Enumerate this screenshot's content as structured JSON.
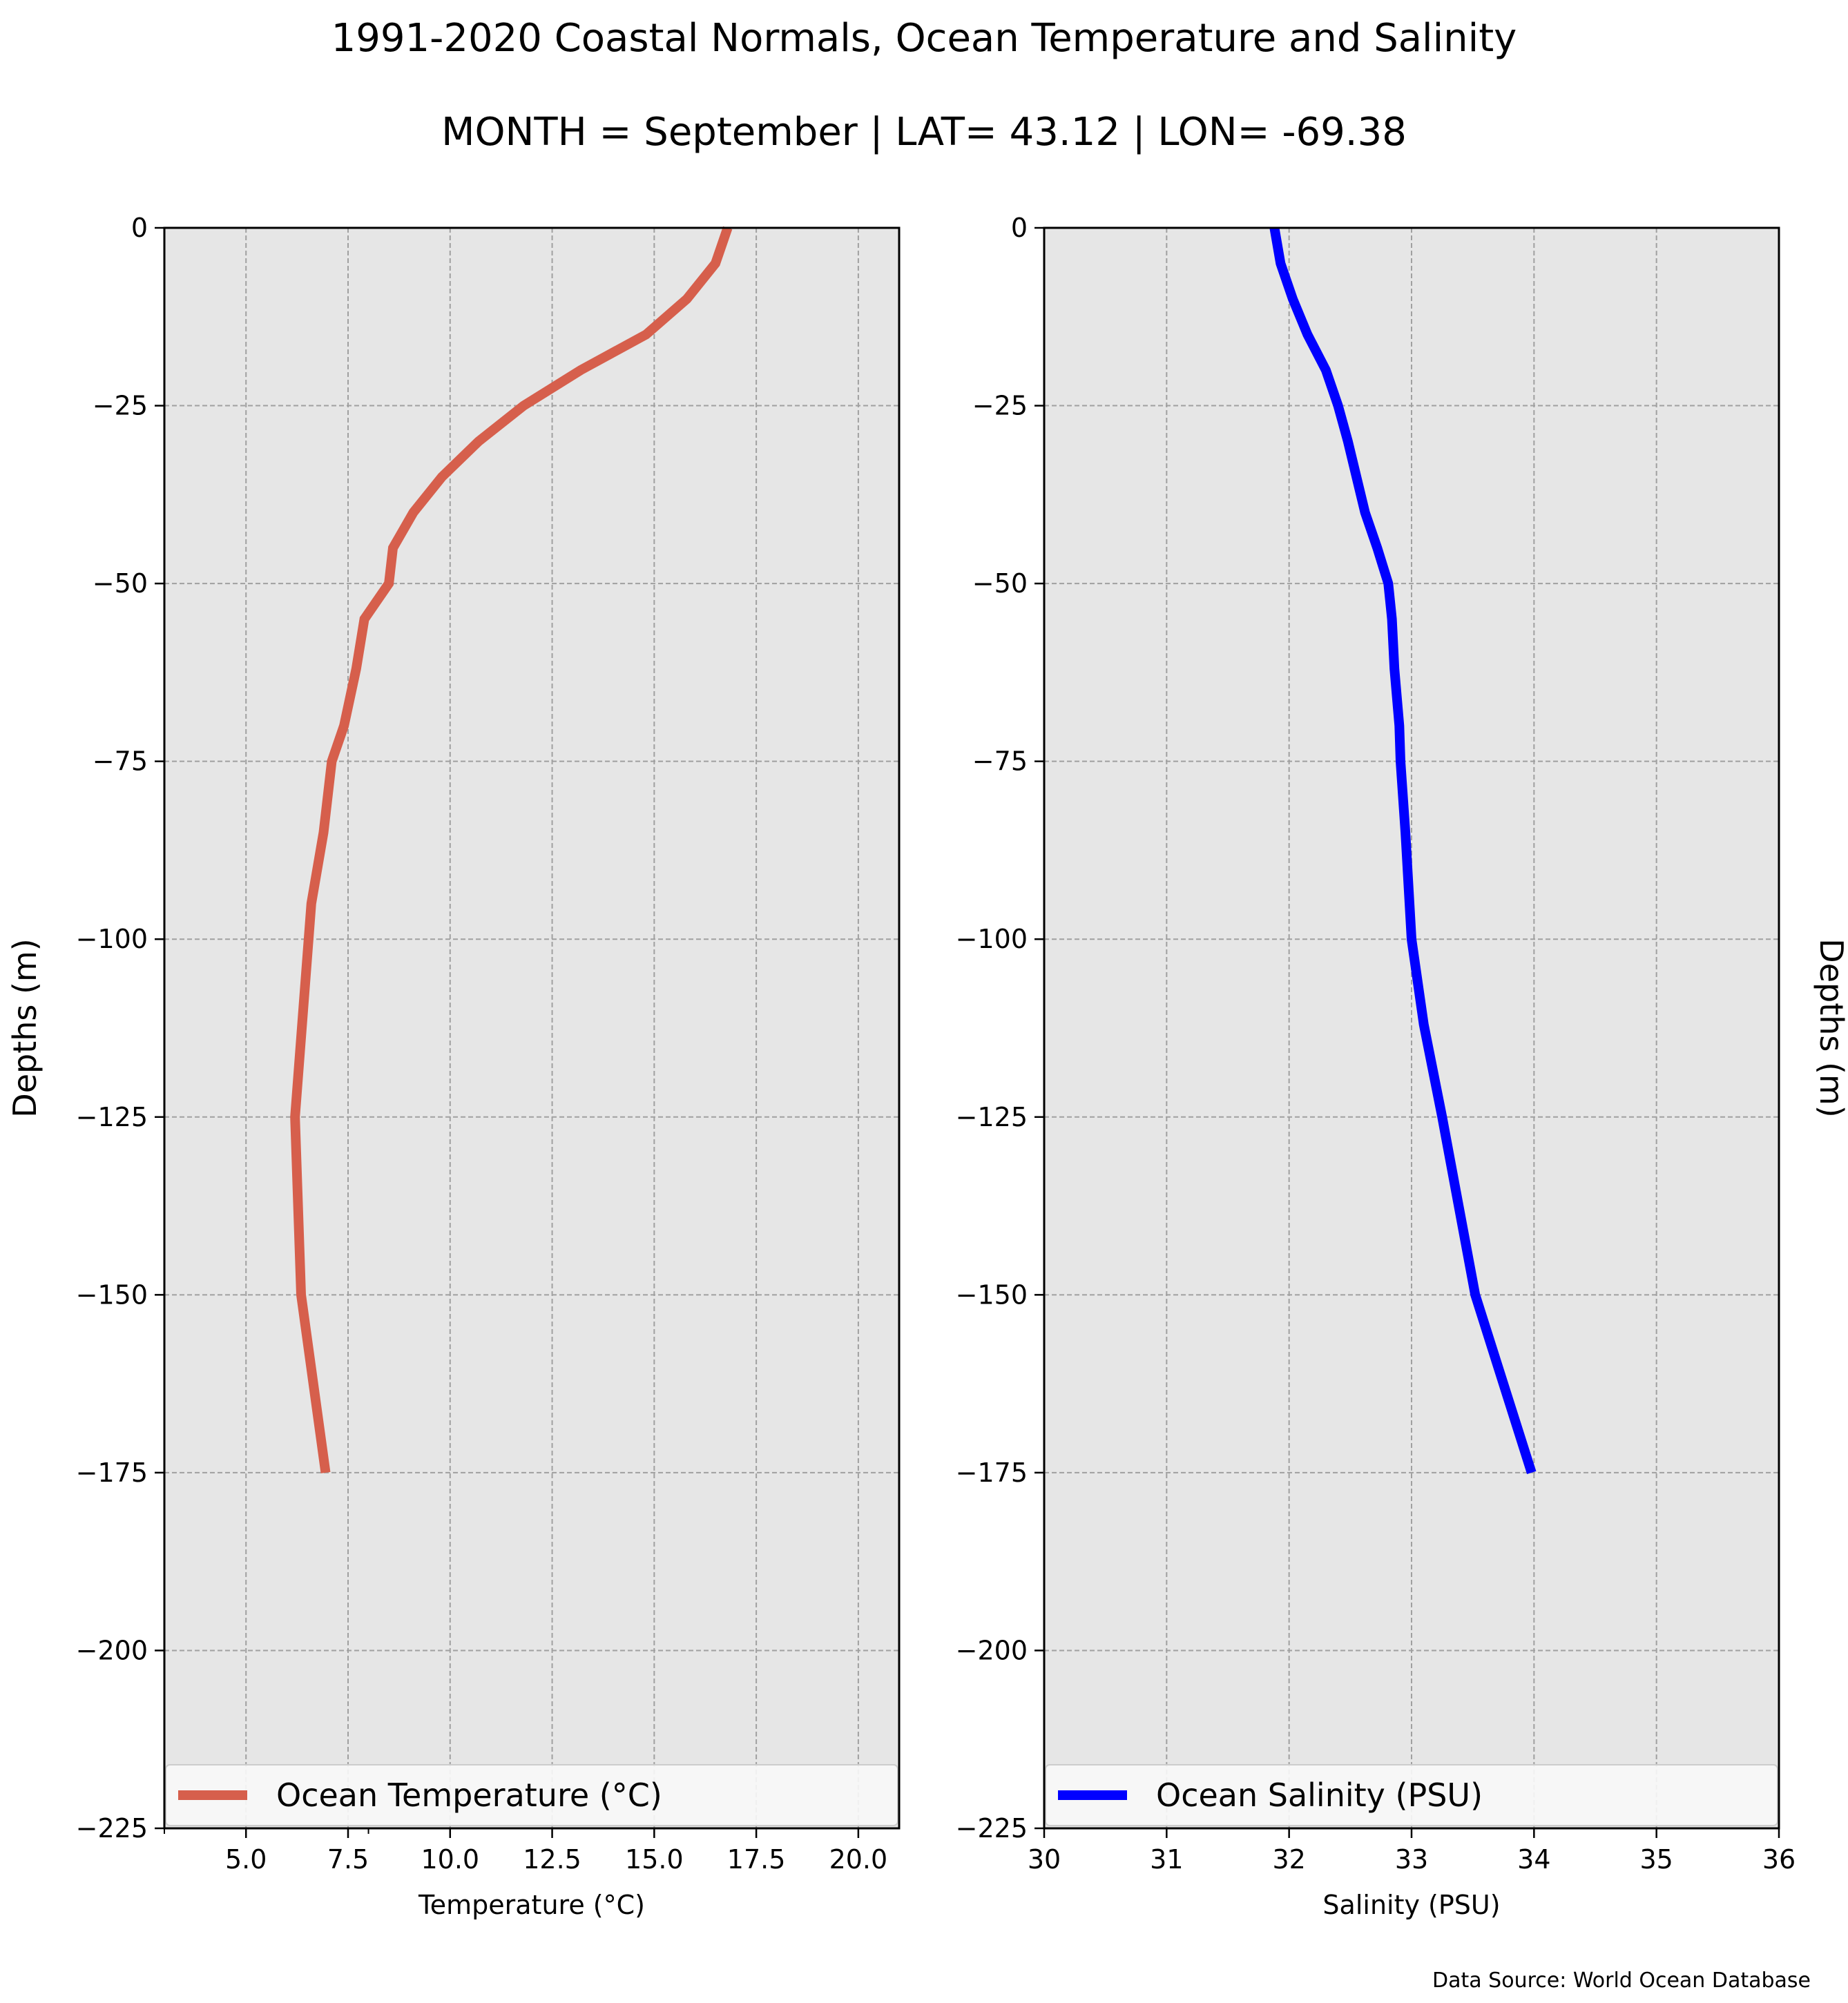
{
  "figure": {
    "title": "1991-2020 Coastal Normals, Ocean Temperature and Salinity",
    "subtitle": "MONTH = September | LAT= 43.12 | LON= -69.38",
    "source": "Data Source: World Ocean Database"
  },
  "chart_data": [
    {
      "type": "line",
      "xlabel": "Temperature ($^\\circ$C)",
      "xlabel_display": "Temperature (°C)",
      "ylabel": "Depths (m)",
      "xlim": [
        3,
        21
      ],
      "ylim": [
        -225,
        0
      ],
      "xticks": [
        5.0,
        7.5,
        10.0,
        12.5,
        15.0,
        17.5,
        20.0
      ],
      "xtick_labels": [
        "5.0",
        "7.5",
        "10.0",
        "12.5",
        "15.0",
        "17.5",
        "20.0"
      ],
      "minor_xticks": [
        3,
        8
      ],
      "yticks": [
        0,
        -25,
        -50,
        -75,
        -100,
        -125,
        -150,
        -175,
        -200,
        -225
      ],
      "ytick_labels": [
        "0",
        "−25",
        "−50",
        "−75",
        "−100",
        "−125",
        "−150",
        "−175",
        "−200",
        "−225"
      ],
      "grid": true,
      "legend_placement": "lower center",
      "color": "#d65f4c",
      "series": [
        {
          "name": "Ocean Temperature (°C)",
          "x": [
            16.8,
            16.5,
            15.8,
            14.8,
            13.2,
            11.8,
            10.7,
            9.8,
            9.1,
            8.6,
            8.5,
            7.9,
            7.7,
            7.4,
            7.1,
            6.9,
            6.6,
            6.4,
            6.2,
            6.35,
            6.95
          ],
          "depth": [
            0,
            -5,
            -10,
            -15,
            -20,
            -25,
            -30,
            -35,
            -40,
            -45,
            -50,
            -55,
            -62,
            -70,
            -75,
            -85,
            -95,
            -110,
            -125,
            -150,
            -175
          ]
        }
      ]
    },
    {
      "type": "line",
      "xlabel": "Salinity (PSU)",
      "ylabel": "Depths (m)",
      "xlim": [
        30,
        36
      ],
      "ylim": [
        -225,
        0
      ],
      "xticks": [
        30,
        31,
        32,
        33,
        34,
        35,
        36
      ],
      "xtick_labels": [
        "30",
        "31",
        "32",
        "33",
        "34",
        "35",
        "36"
      ],
      "yticks": [
        0,
        -25,
        -50,
        -75,
        -100,
        -125,
        -150,
        -175,
        -200,
        -225
      ],
      "ytick_labels": [
        "0",
        "−25",
        "−50",
        "−75",
        "−100",
        "−125",
        "−150",
        "−175",
        "−200",
        "−225"
      ],
      "grid": true,
      "legend_placement": "lower center",
      "color": "#0000ff",
      "series": [
        {
          "name": "Ocean Salinity (PSU)",
          "x": [
            31.88,
            31.93,
            32.03,
            32.15,
            32.3,
            32.4,
            32.48,
            32.55,
            32.62,
            32.72,
            32.81,
            32.84,
            32.86,
            32.9,
            32.91,
            32.95,
            33.0,
            33.1,
            33.25,
            33.52,
            33.98
          ],
          "depth": [
            0,
            -5,
            -10,
            -15,
            -20,
            -25,
            -30,
            -35,
            -40,
            -45,
            -50,
            -55,
            -62,
            -70,
            -75,
            -85,
            -100,
            -112,
            -125,
            -150,
            -175
          ]
        }
      ]
    }
  ]
}
